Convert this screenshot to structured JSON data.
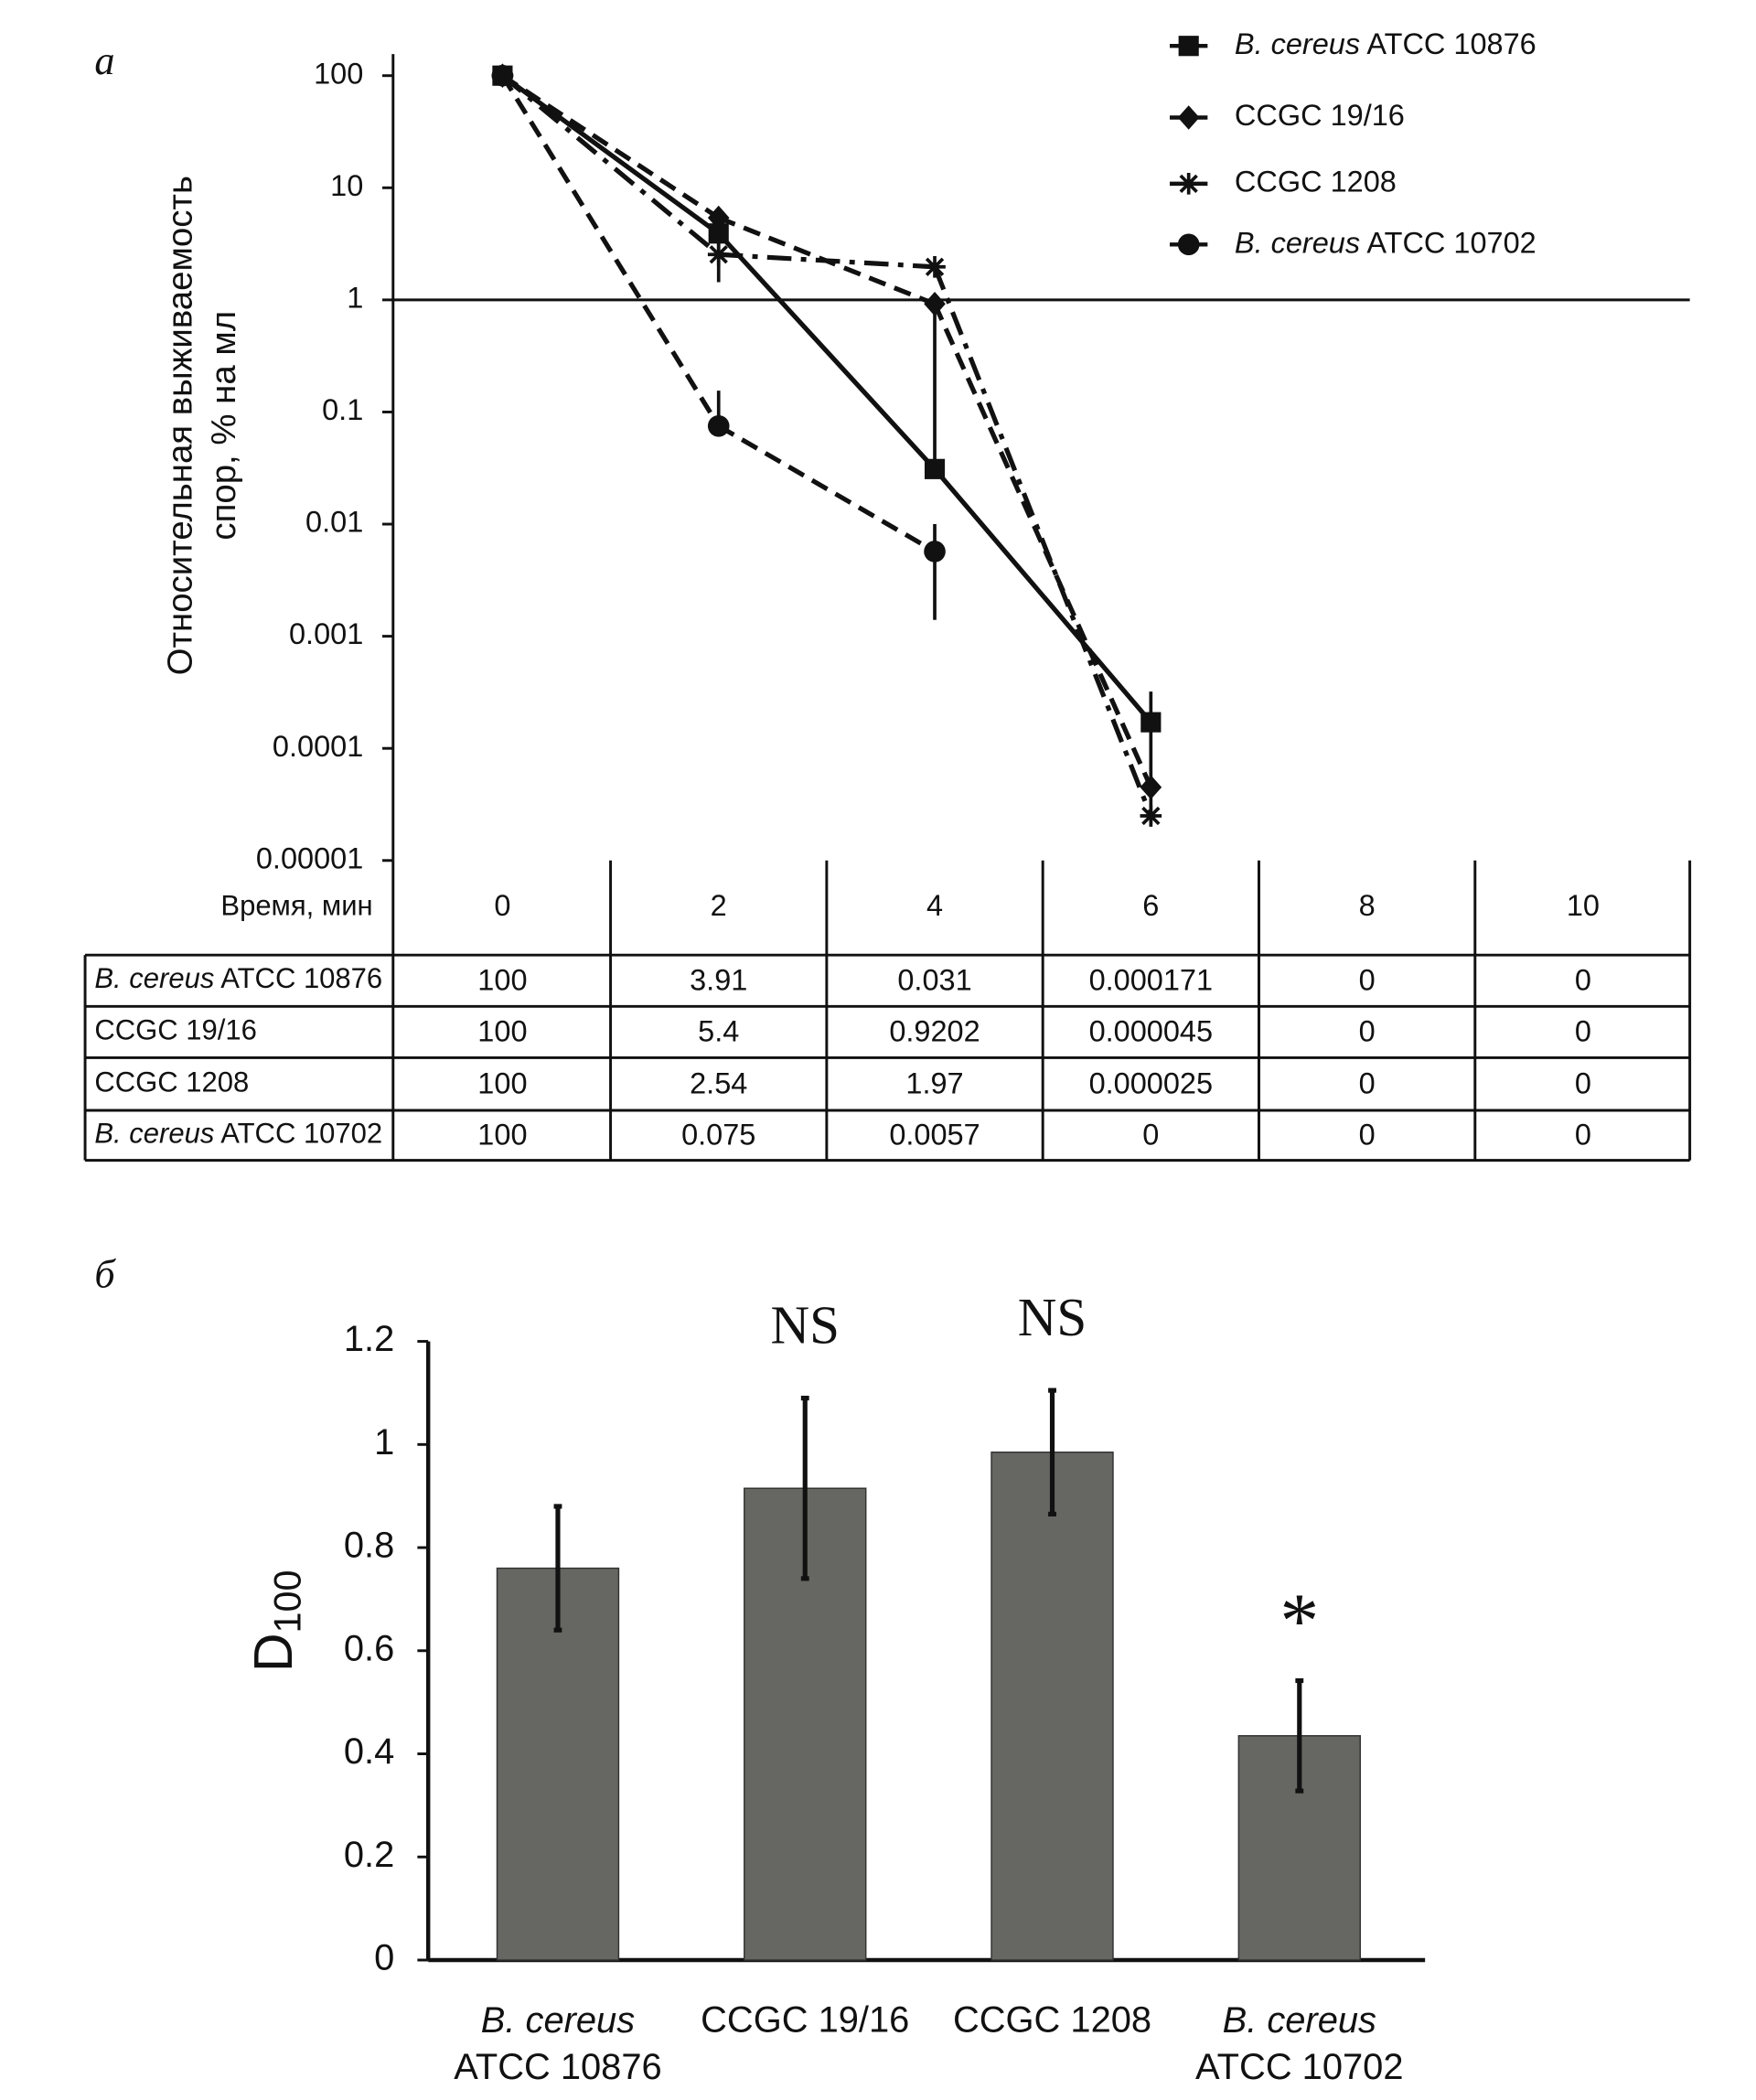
{
  "chart_data": [
    {
      "type": "line",
      "panel_label": "а",
      "log_scale": true,
      "ylabel": [
        "Относительная выживаемость",
        "спор, % на мл"
      ],
      "xlabel": "Время, мин",
      "categories": [
        0,
        2,
        4,
        6,
        8,
        10
      ],
      "ylim": [
        1e-05,
        100
      ],
      "yticks": [
        1e-05,
        0.0001,
        0.001,
        0.01,
        0.1,
        1,
        10,
        100
      ],
      "reference_line": 1,
      "legend": "top-right",
      "series": [
        {
          "name": "B. cereus ATCC 10876",
          "color": "#111111",
          "marker": "square",
          "dash": "solid",
          "values": [
            100,
            3.91,
            0.031,
            0.000171,
            0,
            0
          ],
          "errors": [
            null,
            0.6,
            0.9,
            0.00015,
            null,
            null
          ]
        },
        {
          "name": "CCGC 19/16",
          "color": "#111111",
          "marker": "diamond",
          "dash": "dash",
          "values": [
            100,
            5.4,
            0.9202,
            4.5e-05,
            0,
            0
          ],
          "errors": [
            null,
            null,
            null,
            null,
            null,
            null
          ]
        },
        {
          "name": "CCGC 1208",
          "color": "#111111",
          "marker": "asterisk",
          "dash": "dashdot",
          "values": [
            100,
            2.54,
            1.97,
            2.5e-05,
            0,
            0
          ],
          "errors": [
            null,
            1.1,
            null,
            null,
            null,
            null
          ]
        },
        {
          "name": "B. cereus ATCC 10702",
          "color": "#111111",
          "marker": "circle",
          "dash": "dash",
          "values": [
            100,
            0.075,
            0.0057,
            0,
            0,
            0
          ],
          "errors": [
            null,
            0.08,
            0.0043,
            null,
            null,
            null
          ]
        }
      ]
    },
    {
      "type": "bar",
      "panel_label": "б",
      "ylabel": "D",
      "ylabel_subscript": "100",
      "categories": [
        [
          "B. cereus",
          "ATCC 10876"
        ],
        [
          "CCGC 19/16"
        ],
        [
          "CCGC 1208"
        ],
        [
          "B. cereus",
          "ATCC 10702"
        ]
      ],
      "values": [
        0.76,
        0.915,
        0.985,
        0.435
      ],
      "errors": [
        0.12,
        0.175,
        0.12,
        0.107
      ],
      "annotations": [
        null,
        "NS",
        "NS",
        "*"
      ],
      "color": "#666662",
      "ylim": [
        0,
        1.2
      ],
      "yticks": [
        0,
        0.2,
        0.4,
        0.6,
        0.8,
        1,
        1.2
      ]
    }
  ]
}
